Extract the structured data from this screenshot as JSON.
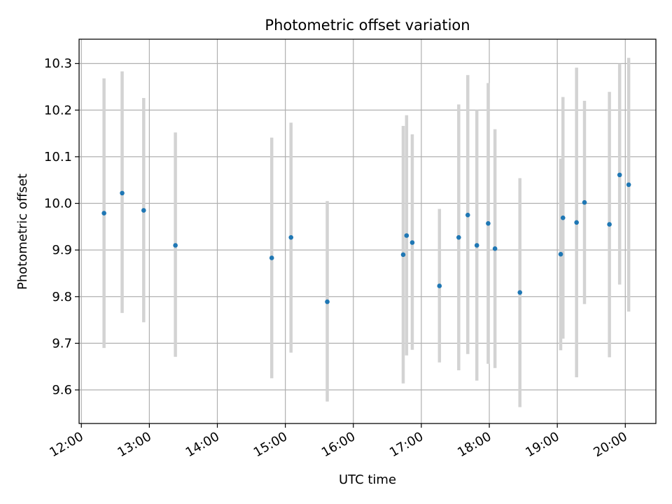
{
  "chart_data": {
    "type": "scatter",
    "title": "Photometric offset variation",
    "xlabel": "UTC time",
    "ylabel": "Photometric offset",
    "x_tick_labels": [
      "12:00",
      "13:00",
      "14:00",
      "15:00",
      "16:00",
      "17:00",
      "18:00",
      "19:00",
      "20:00"
    ],
    "y_tick_labels": [
      "9.6",
      "9.7",
      "9.8",
      "9.9",
      "10.0",
      "10.1",
      "10.2",
      "10.3"
    ],
    "xlim": [
      "11:58",
      "20:27"
    ],
    "ylim": [
      9.528,
      10.352
    ],
    "grid": true,
    "colors": {
      "point": "#1f77b4",
      "errorbar": "#d3d3d3",
      "grid": "#b0b0b0"
    },
    "points": [
      {
        "x": "12:20",
        "y": 9.979,
        "ymin": 9.69,
        "ymax": 10.268
      },
      {
        "x": "12:36",
        "y": 10.022,
        "ymin": 9.765,
        "ymax": 10.283
      },
      {
        "x": "12:55",
        "y": 9.985,
        "ymin": 9.745,
        "ymax": 10.226
      },
      {
        "x": "13:23",
        "y": 9.91,
        "ymin": 9.671,
        "ymax": 10.152
      },
      {
        "x": "14:48",
        "y": 9.883,
        "ymin": 9.625,
        "ymax": 10.141
      },
      {
        "x": "15:05",
        "y": 9.927,
        "ymin": 9.68,
        "ymax": 10.173
      },
      {
        "x": "15:37",
        "y": 9.789,
        "ymin": 9.575,
        "ymax": 10.005
      },
      {
        "x": "16:44",
        "y": 9.89,
        "ymin": 9.614,
        "ymax": 10.166
      },
      {
        "x": "16:47",
        "y": 9.931,
        "ymin": 9.674,
        "ymax": 10.189
      },
      {
        "x": "16:52",
        "y": 9.916,
        "ymin": 9.686,
        "ymax": 10.148
      },
      {
        "x": "17:16",
        "y": 9.823,
        "ymin": 9.659,
        "ymax": 9.988
      },
      {
        "x": "17:33",
        "y": 9.927,
        "ymin": 9.642,
        "ymax": 10.212
      },
      {
        "x": "17:41",
        "y": 9.975,
        "ymin": 9.677,
        "ymax": 10.275
      },
      {
        "x": "17:49",
        "y": 9.91,
        "ymin": 9.62,
        "ymax": 10.2
      },
      {
        "x": "17:59",
        "y": 9.957,
        "ymin": 9.656,
        "ymax": 10.258
      },
      {
        "x": "18:05",
        "y": 9.903,
        "ymin": 9.647,
        "ymax": 10.159
      },
      {
        "x": "18:27",
        "y": 9.809,
        "ymin": 9.563,
        "ymax": 10.054
      },
      {
        "x": "19:03",
        "y": 9.891,
        "ymin": 9.685,
        "ymax": 10.096
      },
      {
        "x": "19:05",
        "y": 9.969,
        "ymin": 9.71,
        "ymax": 10.228
      },
      {
        "x": "19:17",
        "y": 9.959,
        "ymin": 9.627,
        "ymax": 10.291
      },
      {
        "x": "19:24",
        "y": 10.002,
        "ymin": 9.784,
        "ymax": 10.22
      },
      {
        "x": "19:46",
        "y": 9.955,
        "ymin": 9.67,
        "ymax": 10.239
      },
      {
        "x": "19:55",
        "y": 10.061,
        "ymin": 9.826,
        "ymax": 10.3
      },
      {
        "x": "20:03",
        "y": 10.04,
        "ymin": 9.768,
        "ymax": 10.312
      }
    ]
  }
}
